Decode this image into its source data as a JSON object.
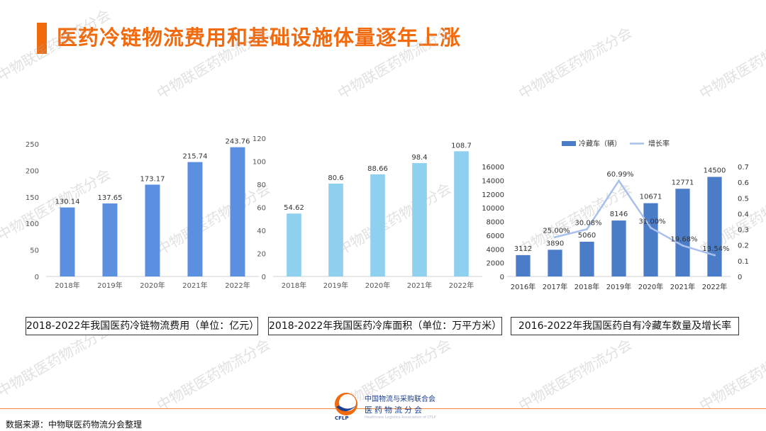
{
  "page": {
    "title": "医药冷链物流费用和基础设施体量逐年上涨",
    "source": "数据来源：中物联医药物流分会整理",
    "watermark": "中物联医药物流分会"
  },
  "logo": {
    "line1": "中国物流与采购联合会",
    "line2": "医药物流分会",
    "abbr": "CFLP",
    "english": "Healthcare Logistics Association of CFLP"
  },
  "chart_data": [
    {
      "type": "bar",
      "caption": "2018-2022年我国医药冷链物流费用（单位：亿元）",
      "categories": [
        "2018年",
        "2019年",
        "2020年",
        "2021年",
        "2022年"
      ],
      "values": [
        130.14,
        137.65,
        173.17,
        215.74,
        243.76
      ],
      "labels": [
        "130.14",
        "137.65",
        "173.17",
        "215.74",
        "243.76"
      ],
      "ylim": [
        0,
        250
      ],
      "yticks": [
        0,
        50,
        100,
        150,
        200,
        250
      ],
      "color": "#5b8fe0",
      "grid": false
    },
    {
      "type": "bar",
      "caption": "2018-2022年我国医药冷库面积（单位：万平方米）",
      "categories": [
        "2018年",
        "2019年",
        "2020年",
        "2021年",
        "2022年"
      ],
      "values": [
        54.62,
        80.6,
        88.66,
        98.4,
        108.7
      ],
      "labels": [
        "54.62",
        "80.6",
        "88.66",
        "98.4",
        "108.7"
      ],
      "ylim": [
        0,
        120
      ],
      "yticks": [
        0,
        20,
        40,
        60,
        80,
        100,
        120
      ],
      "color": "#8fd0ee",
      "grid": false
    },
    {
      "type": "bar+line",
      "caption": "2016-2022年我国医药自有冷藏车数量及增长率",
      "categories": [
        "2016年",
        "2017年",
        "2018年",
        "2019年",
        "2020年",
        "2021年",
        "2022年"
      ],
      "series": [
        {
          "name": "冷藏车（辆）",
          "type": "bar",
          "values": [
            3112,
            3890,
            5060,
            8146,
            10671,
            12771,
            14500
          ],
          "labels": [
            "3112",
            "3890",
            "5060",
            "8146",
            "10671",
            "12771",
            "14500"
          ],
          "color": "#4a7cc7"
        },
        {
          "name": "增长率",
          "type": "line",
          "axis": "right",
          "x": [
            "2017年",
            "2018年",
            "2019年",
            "2020年",
            "2021年",
            "2022年"
          ],
          "values": [
            0.25,
            0.3008,
            0.6099,
            0.31,
            0.1968,
            0.1354
          ],
          "labels": [
            "25.00%",
            "30.08%",
            "60.99%",
            "31.00%",
            "19.68%",
            "13.54%"
          ],
          "color": "#a9c0ec"
        }
      ],
      "ylim": [
        0,
        16000
      ],
      "yticks": [
        0,
        2000,
        4000,
        6000,
        8000,
        10000,
        12000,
        14000,
        16000
      ],
      "y2lim": [
        0,
        0.7
      ],
      "y2ticks": [
        "0",
        "0.1",
        "0.2",
        "0.3",
        "0.4",
        "0.5",
        "0.6",
        "0.7"
      ],
      "legend": "top",
      "grid": false
    }
  ]
}
